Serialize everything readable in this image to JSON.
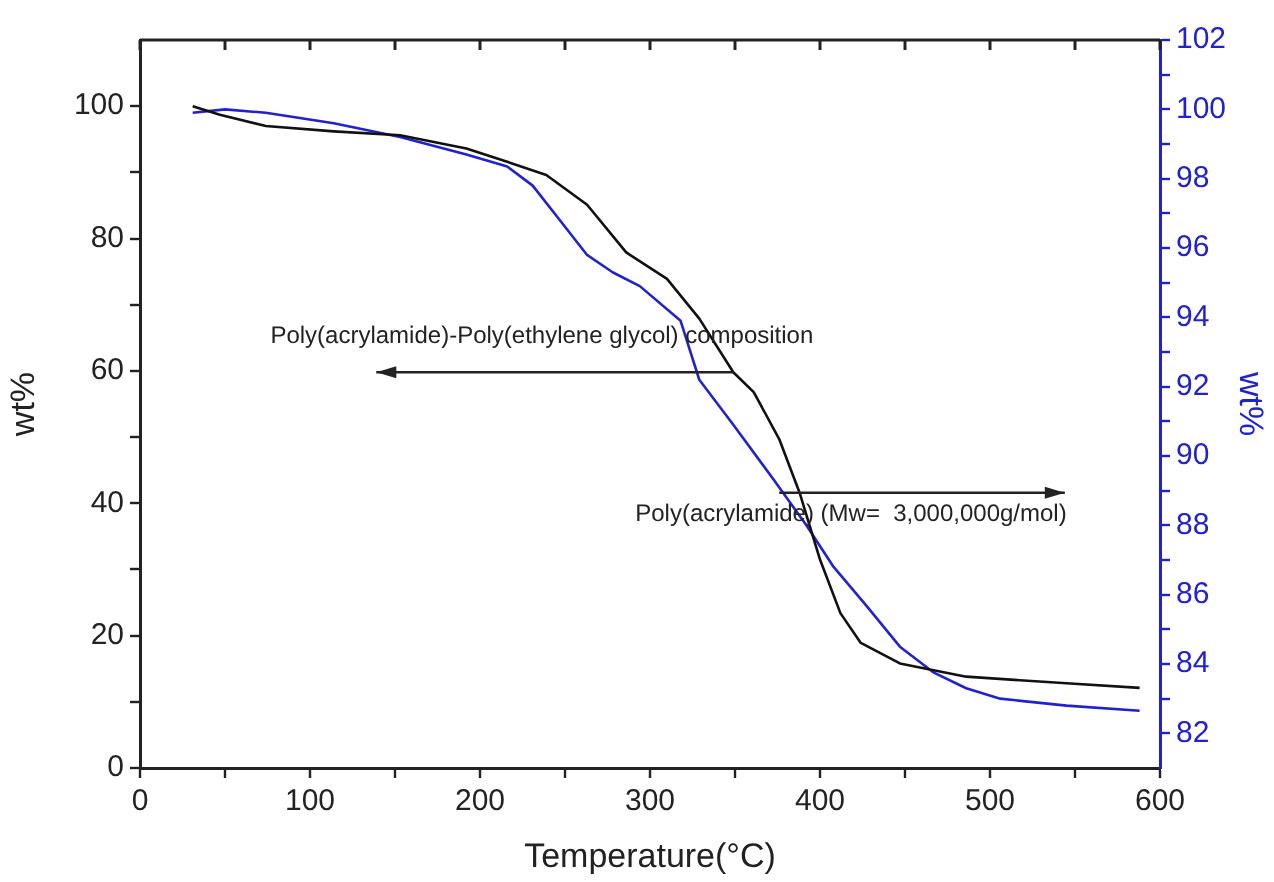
{
  "chart_data": {
    "type": "line",
    "xlabel": "Temperature(°C)",
    "ylabel": "wt%",
    "y2label": "wt%",
    "xlim": [
      0,
      600
    ],
    "xticks": [
      0,
      {
        "value": 50,
        "label": null
      },
      100,
      {
        "value": 150,
        "label": null
      },
      200,
      {
        "value": 250,
        "label": null
      },
      300,
      {
        "value": 350,
        "label": null
      },
      400,
      {
        "value": 450,
        "label": null
      },
      500,
      {
        "value": 550,
        "label": null
      },
      600
    ],
    "ylim": [
      0,
      110
    ],
    "yticks": [
      0,
      {
        "value": 10,
        "label": null
      },
      20,
      {
        "value": 30,
        "label": null
      },
      40,
      {
        "value": 50,
        "label": null
      },
      60,
      {
        "value": 70,
        "label": null
      },
      80,
      {
        "value": 90,
        "label": null
      },
      100
    ],
    "y2lim": [
      81,
      102
    ],
    "y2ticks": [
      82,
      {
        "value": 83,
        "label": null
      },
      84,
      {
        "value": 85,
        "label": null
      },
      86,
      {
        "value": 87,
        "label": null
      },
      88,
      {
        "value": 89,
        "label": null
      },
      90,
      {
        "value": 91,
        "label": null
      },
      92,
      {
        "value": 93,
        "label": null
      },
      94,
      {
        "value": 95,
        "label": null
      },
      96,
      {
        "value": 97,
        "label": null
      },
      98,
      {
        "value": 99,
        "label": null
      },
      100,
      {
        "value": 101,
        "label": null
      },
      102
    ],
    "series": [
      {
        "color": "#111111",
        "x": [
          31,
          47,
          74,
          114,
          153,
          192,
          216,
          239,
          263,
          286,
          310,
          329,
          349,
          361,
          376,
          388,
          400,
          412,
          424,
          447,
          486,
          545,
          588
        ],
        "values": [
          100,
          98.7,
          97,
          96.2,
          95.6,
          93.6,
          91.6,
          89.6,
          85.1,
          77.9,
          73.9,
          67.9,
          59.8,
          56.8,
          49.7,
          41.6,
          31.5,
          23.4,
          18.9,
          15.8,
          13.8,
          12.8,
          12.1
        ]
      },
      {
        "color": "#2222cc",
        "axis": "y2",
        "x": [
          31,
          50,
          74,
          114,
          153,
          192,
          216,
          231,
          247,
          263,
          278,
          294,
          318,
          329,
          349,
          373,
          392,
          408,
          427,
          447,
          467,
          486,
          506,
          545,
          588
        ],
        "values": [
          99.9,
          100,
          99.9,
          99.6,
          99.2,
          98.7,
          98.35,
          97.8,
          96.8,
          95.8,
          95.3,
          94.9,
          93.9,
          92.2,
          90.9,
          89.3,
          88,
          86.8,
          85.7,
          84.5,
          83.75,
          83.3,
          83,
          82.8,
          82.65
        ]
      }
    ],
    "annotations": [
      {
        "text": "Poly(acrylamide)-Poly(ethylene glycol) composition",
        "x": 349,
        "y": 59.8
      },
      {
        "text": "Poly(acrylamide) (Mw=  3,000,000g/mol)",
        "x": 376,
        "y": 41.6
      }
    ],
    "grid": false,
    "legend": false,
    "marker": "none",
    "line_style": "solid"
  }
}
